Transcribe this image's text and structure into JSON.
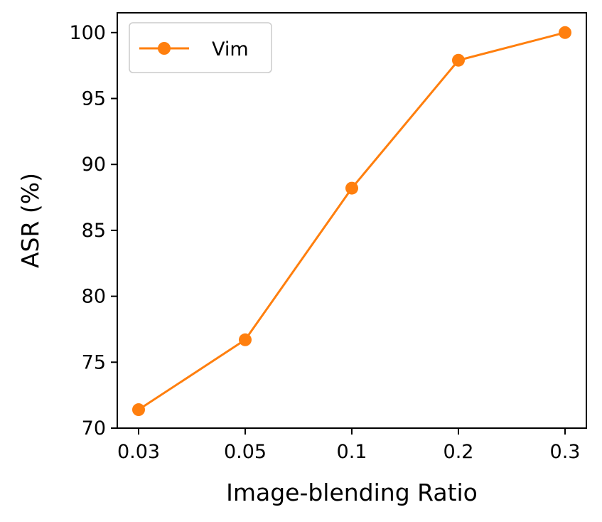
{
  "chart_data": {
    "type": "line",
    "categories": [
      "0.03",
      "0.05",
      "0.1",
      "0.2",
      "0.3"
    ],
    "series": [
      {
        "name": "Vim",
        "values": [
          71.4,
          76.7,
          88.2,
          97.9,
          100.0
        ],
        "color": "#ff7f0e"
      }
    ],
    "xlabel": "Image-blending Ratio",
    "ylabel": "ASR (%)",
    "ylim": [
      70,
      101.5
    ],
    "yticks": [
      70,
      75,
      80,
      85,
      90,
      95,
      100
    ],
    "grid": false,
    "legend_position": "top-left"
  }
}
